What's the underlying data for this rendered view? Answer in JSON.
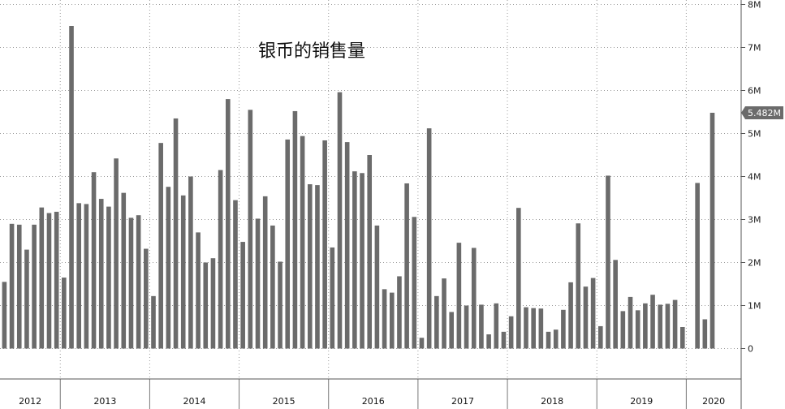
{
  "chart_data": {
    "type": "bar",
    "title": "银币的销售量",
    "xlabel": "",
    "ylabel": "",
    "ylim": [
      0,
      8000000
    ],
    "yticks": [
      0,
      1000000,
      2000000,
      3000000,
      4000000,
      5000000,
      6000000,
      7000000,
      8000000
    ],
    "ytick_labels": [
      "0",
      "1M",
      "2M",
      "3M",
      "4M",
      "5M",
      "6M",
      "7M",
      "8M"
    ],
    "grid": true,
    "bar_color": "#6b6b6b",
    "last_value_label": "5.482M",
    "last_value_color": "#6b6b6b",
    "years": [
      "2012",
      "2013",
      "2014",
      "2015",
      "2016",
      "2017",
      "2018",
      "2019",
      "2020"
    ],
    "months_per_year": [
      8,
      12,
      12,
      12,
      12,
      12,
      12,
      12,
      4
    ],
    "values": [
      1550000,
      2900000,
      2880000,
      2300000,
      2880000,
      3280000,
      3150000,
      3180000,
      1650000,
      7500000,
      3380000,
      3360000,
      4100000,
      3480000,
      3300000,
      4420000,
      3620000,
      3040000,
      3100000,
      2320000,
      1220000,
      4780000,
      3760000,
      5350000,
      3560000,
      4000000,
      2700000,
      2000000,
      2100000,
      4150000,
      5800000,
      3450000,
      2480000,
      5550000,
      3020000,
      3540000,
      2860000,
      2020000,
      4860000,
      5520000,
      4940000,
      3820000,
      3800000,
      4840000,
      2350000,
      5960000,
      4800000,
      4120000,
      4080000,
      4500000,
      2860000,
      1380000,
      1300000,
      1680000,
      3840000,
      3060000,
      250000,
      5120000,
      1220000,
      1630000,
      850000,
      2460000,
      1000000,
      2340000,
      1020000,
      330000,
      1050000,
      390000,
      750000,
      3270000,
      960000,
      940000,
      930000,
      390000,
      440000,
      900000,
      1540000,
      2910000,
      1440000,
      1640000,
      520000,
      4020000,
      2060000,
      870000,
      1200000,
      890000,
      1050000,
      1250000,
      1020000,
      1040000,
      1130000,
      500000,
      0,
      3850000,
      680000,
      5482000
    ]
  }
}
